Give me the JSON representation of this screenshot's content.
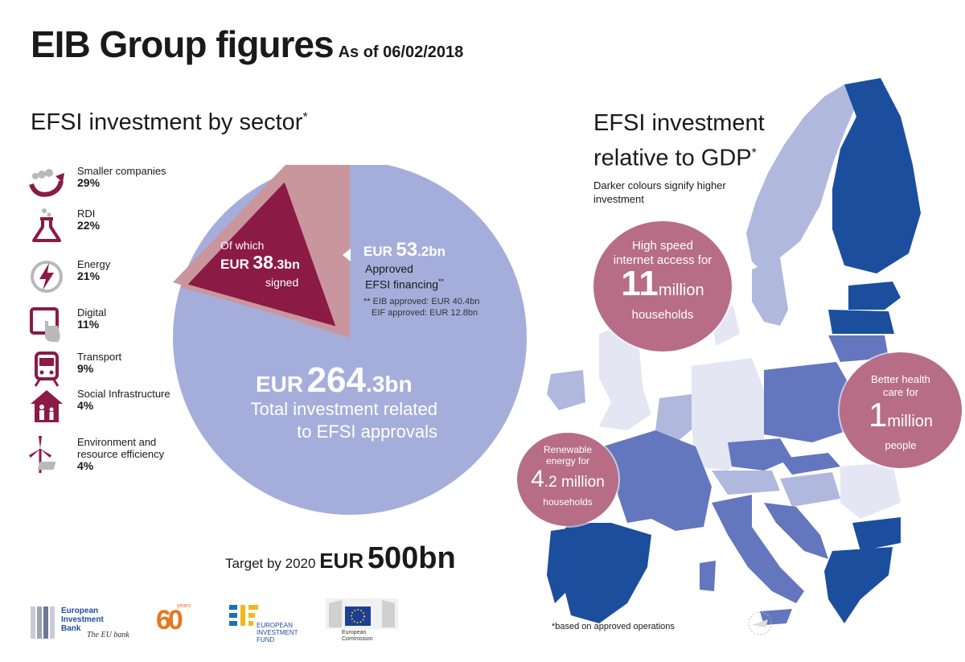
{
  "header": {
    "title": "EIB Group figures",
    "as_of": "As of 06/02/2018"
  },
  "left_section": {
    "heading": "EFSI investment by sector",
    "heading_mark": "*",
    "sectors": [
      {
        "name": "Smaller companies",
        "pct": "29%",
        "icon": "smaller-companies-icon"
      },
      {
        "name": "RDI",
        "pct": "22%",
        "icon": "flask-icon"
      },
      {
        "name": "Energy",
        "pct": "21%",
        "icon": "lightning-icon"
      },
      {
        "name": "Digital",
        "pct": "11%",
        "icon": "tablet-touch-icon"
      },
      {
        "name": "Transport",
        "pct": "9%",
        "icon": "train-icon"
      },
      {
        "name": "Social Infrastructure",
        "pct": "4%",
        "icon": "house-family-icon"
      },
      {
        "name": "Environment and resource efficiency",
        "pct": "4%",
        "icon": "wind-turbine-icon"
      }
    ]
  },
  "center": {
    "signed": {
      "of_which": "Of which",
      "eur": "EUR",
      "big": "38",
      "small": ".3bn",
      "signed": "signed"
    },
    "approved": {
      "eur": "EUR",
      "big": "53",
      "small": ".2bn",
      "line1": "Approved",
      "line2": "EFSI financing",
      "mark": "**",
      "eib": "** EIB approved: EUR 40.4bn",
      "eif": "EIF approved: EUR 12.8bn"
    },
    "total": {
      "eur": "EUR",
      "big": "264",
      "small": ".3bn",
      "line1": "Total investment related",
      "line2": "to EFSI approvals"
    },
    "target": {
      "label": "Target by 2020",
      "eur": "EUR",
      "big": "500bn"
    }
  },
  "right_section": {
    "heading_line1": "EFSI investment",
    "heading_line2": "relative to GDP",
    "heading_mark": "*",
    "note": "Darker colours signify higher investment",
    "bubbles": [
      {
        "line1": "High speed",
        "line2": "internet access for",
        "big": "11",
        "unit": "million",
        "line3": "households"
      },
      {
        "line1": "Better health",
        "line2": "care for",
        "big": "1",
        "unit": "million",
        "line3": "people"
      },
      {
        "line1": "Renewable",
        "line2": "energy for",
        "big": "4",
        "unit": ".2 million",
        "line3": "households"
      }
    ],
    "footnote": "*based on approved operations"
  },
  "logos": {
    "eib_name": "European Investment Bank",
    "eib_name_l1": "European",
    "eib_name_l2": "Investment",
    "eib_name_l3": "Bank",
    "eib_tag": "The EU bank",
    "sixty": "60",
    "sixty_years": "years",
    "eif_l1": "EUROPEAN",
    "eif_l2": "INVESTMENT",
    "eif_l3": "FUND",
    "ec_l1": "European",
    "ec_l2": "Commission"
  },
  "colors": {
    "pie_total": "#a5aedb",
    "pie_approved": "#c9969e",
    "pie_signed": "#8b1a45",
    "accent_maroon": "#8b1a45",
    "bubble": "#b76d86",
    "map_dark": "#1c4e9e",
    "map_mid": "#6476bd",
    "map_light": "#b1b8de",
    "map_pale": "#e4e6f3"
  }
}
